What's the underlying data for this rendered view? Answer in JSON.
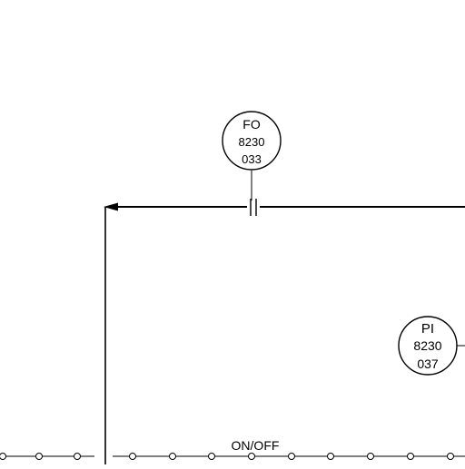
{
  "instruments": [
    {
      "tag": "FO",
      "loop": "8230",
      "suffix": "033"
    },
    {
      "tag": "PI",
      "loop": "8230",
      "suffix": "037"
    }
  ],
  "signal_label": "ON/OFF",
  "colors": {
    "line": "#000000",
    "background": "#ffffff"
  }
}
